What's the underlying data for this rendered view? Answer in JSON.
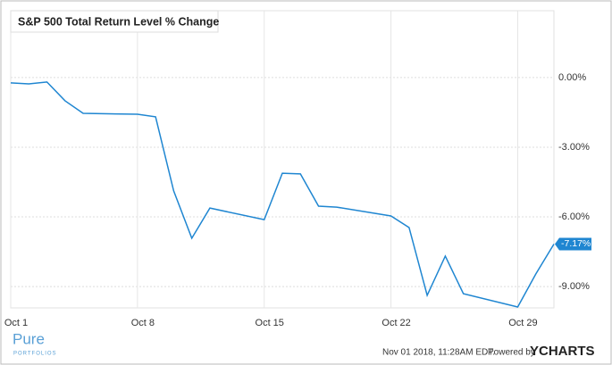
{
  "chart_data": {
    "type": "line",
    "title": "S&P 500 Total Return Level % Change",
    "x": [
      1,
      2,
      3,
      4,
      5,
      8,
      9,
      10,
      11,
      12,
      15,
      16,
      17,
      18,
      19,
      22,
      23,
      24,
      25,
      26,
      29,
      30,
      31
    ],
    "series": [
      {
        "name": "S&P 500 Total Return Level % Change",
        "color": "#1f86d1",
        "values": [
          -0.23,
          -0.27,
          -0.19,
          -1.0,
          -1.54,
          -1.58,
          -1.69,
          -4.88,
          -6.92,
          -5.62,
          -6.12,
          -4.12,
          -4.15,
          -5.54,
          -5.58,
          -5.96,
          -6.46,
          -9.38,
          -7.69,
          -9.31,
          -9.88,
          -8.46,
          -7.17
        ],
        "value_labels": [
          null,
          null,
          null,
          null,
          null,
          null,
          null,
          null,
          null,
          null,
          null,
          null,
          null,
          null,
          null,
          null,
          null,
          null,
          null,
          null,
          null,
          null,
          "-7.17%"
        ]
      }
    ],
    "xlim": [
      1,
      31
    ],
    "xticks": [
      {
        "value": 1,
        "label": "Oct 1"
      },
      {
        "value": 8,
        "label": "Oct 8"
      },
      {
        "value": 15,
        "label": "Oct 15"
      },
      {
        "value": 22,
        "label": "Oct 22"
      },
      {
        "value": 29,
        "label": "Oct 29"
      }
    ],
    "ylim": [
      -9.92,
      2.88
    ],
    "yticks": [
      {
        "value": 0,
        "label": "0.00%"
      },
      {
        "value": -3,
        "label": "-3.00%"
      },
      {
        "value": -6,
        "label": "-6.00%"
      },
      {
        "value": -9,
        "label": "-9.00%"
      }
    ],
    "grid": true
  },
  "footer": {
    "timestamp": "Nov 01 2018, 11:28AM EDT.",
    "powered_by": "Powered by",
    "brand": "YCHARTS"
  },
  "logo": {
    "name": "Pure",
    "tagline": "PORTFOLIOS"
  }
}
